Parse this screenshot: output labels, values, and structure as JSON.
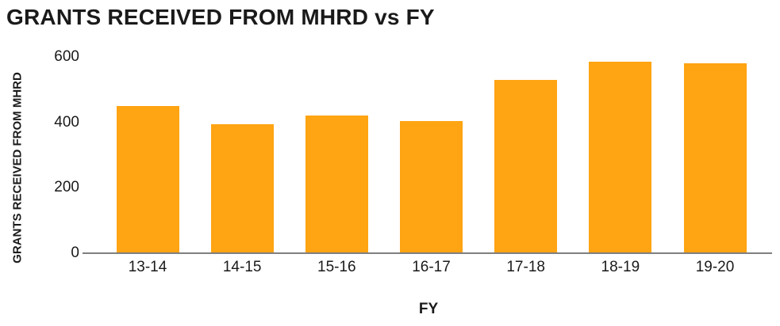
{
  "chart_data": {
    "type": "bar",
    "title": "GRANTS RECEIVED FROM MHRD vs FY",
    "xlabel": "FY",
    "ylabel": "GRANTS RECEIVED FROM MHRD",
    "categories": [
      "13-14",
      "14-15",
      "15-16",
      "16-17",
      "17-18",
      "18-19",
      "19-20"
    ],
    "values": [
      450,
      395,
      420,
      405,
      530,
      585,
      580
    ],
    "ylim": [
      0,
      600
    ],
    "yticks": [
      0,
      200,
      400,
      600
    ],
    "grid": false,
    "legend": "none",
    "bar_color": "#FFA412",
    "axis_line_color": "#7f7f7f",
    "text_color": "#1A1A1A"
  }
}
